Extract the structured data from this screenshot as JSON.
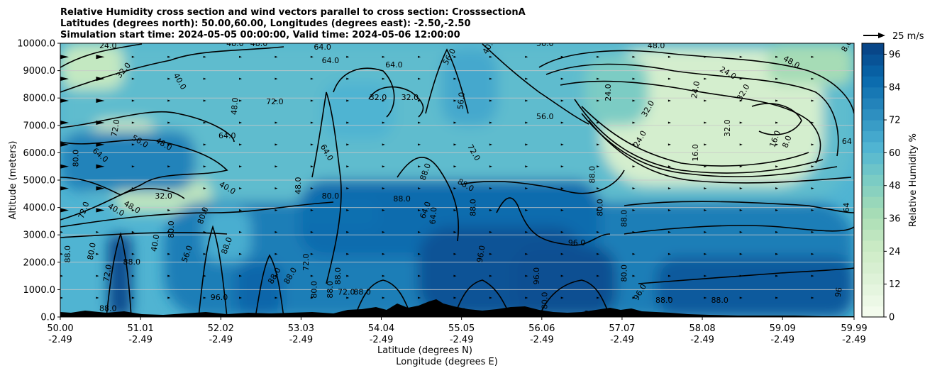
{
  "chart_data": {
    "type": "contourf",
    "title_lines": [
      "Relative Humidity cross section and wind vectors parallel to cross section: CrosssectionA",
      "Latitudes (degrees north): 50.00,60.00, Longitudes (degrees east): -2.50,-2.50",
      "Simulation start time: 2024-05-05 00:00:00, Valid time: 2024-05-06 12:00:00"
    ],
    "ylabel": "Altitude (meters)",
    "xlabel_lat": "Latitude (degrees N)",
    "xlabel_lon": "Longitude (degrees E)",
    "ylim": [
      0,
      10000
    ],
    "y_ticks": [
      0,
      1000,
      2000,
      3000,
      4000,
      5000,
      6000,
      7000,
      8000,
      9000,
      10000
    ],
    "y_tick_labels": [
      "0.0",
      "1000.0",
      "2000.0",
      "3000.0",
      "4000.0",
      "5000.0",
      "6000.0",
      "7000.0",
      "8000.0",
      "9000.0",
      "10000.0"
    ],
    "xlim": [
      50.0,
      59.99
    ],
    "x_ticks": [
      {
        "lat": 50.0,
        "lat_label": "50.00",
        "lon_label": "-2.49"
      },
      {
        "lat": 51.01,
        "lat_label": "51.01",
        "lon_label": "-2.49"
      },
      {
        "lat": 52.02,
        "lat_label": "52.02",
        "lon_label": "-2.49"
      },
      {
        "lat": 53.03,
        "lat_label": "53.03",
        "lon_label": "-2.49"
      },
      {
        "lat": 54.04,
        "lat_label": "54.04",
        "lon_label": "-2.49"
      },
      {
        "lat": 55.05,
        "lat_label": "55.05",
        "lon_label": "-2.49"
      },
      {
        "lat": 56.06,
        "lat_label": "56.06",
        "lon_label": "-2.49"
      },
      {
        "lat": 57.07,
        "lat_label": "57.07",
        "lon_label": "-2.49"
      },
      {
        "lat": 58.08,
        "lat_label": "58.08",
        "lon_label": "-2.49"
      },
      {
        "lat": 59.09,
        "lat_label": "59.09",
        "lon_label": "-2.49"
      },
      {
        "lat": 59.99,
        "lat_label": "59.99",
        "lon_label": "-2.49"
      }
    ],
    "colorbar": {
      "label": "Relative Humidity %",
      "min": 0,
      "max": 100,
      "ticks": [
        0,
        12,
        24,
        36,
        48,
        60,
        72,
        84,
        96
      ],
      "tick_labels": [
        "0",
        "12",
        "24",
        "36",
        "48",
        "60",
        "72",
        "84",
        "96"
      ],
      "levels": 25
    },
    "colormap_stops": [
      "#f7fcf0",
      "#e0f3db",
      "#ccebc5",
      "#a8ddb5",
      "#7bccc4",
      "#4eb3d3",
      "#2b8cbe",
      "#0868ac",
      "#084081"
    ],
    "wind_reference": {
      "label": "25 m/s",
      "value": 25
    },
    "rh_regions": [
      {
        "value": 58,
        "lat": [
          50.0,
          59.99
        ],
        "alt": [
          4200,
          10000
        ]
      },
      {
        "value": 28,
        "lat": [
          50.0,
          50.8
        ],
        "alt": [
          8300,
          10000
        ]
      },
      {
        "value": 26,
        "lat": [
          50.4,
          51.2
        ],
        "alt": [
          5800,
          7200
        ]
      },
      {
        "value": 30,
        "lat": [
          50.7,
          51.9
        ],
        "alt": [
          3800,
          5000
        ]
      },
      {
        "value": 20,
        "lat": [
          56.8,
          59.6
        ],
        "alt": [
          4800,
          9800
        ]
      },
      {
        "value": 38,
        "lat": [
          58.9,
          59.99
        ],
        "alt": [
          8500,
          10000
        ]
      },
      {
        "value": 50,
        "lat": [
          56.6,
          57.4
        ],
        "alt": [
          7000,
          9500
        ]
      },
      {
        "value": 78,
        "lat": [
          50.0,
          51.7
        ],
        "alt": [
          4600,
          6800
        ]
      },
      {
        "value": 80,
        "lat": [
          51.3,
          59.99
        ],
        "alt": [
          0,
          4200
        ]
      },
      {
        "value": 86,
        "lat": [
          53.0,
          56.8
        ],
        "alt": [
          2200,
          5000
        ]
      },
      {
        "value": 94,
        "lat": [
          54.5,
          56.6
        ],
        "alt": [
          0,
          3300
        ]
      },
      {
        "value": 95,
        "lat": [
          55.7,
          57.0
        ],
        "alt": [
          0,
          2600
        ]
      },
      {
        "value": 92,
        "lat": [
          57.5,
          59.99
        ],
        "alt": [
          0,
          2200
        ]
      },
      {
        "value": 96,
        "lat": [
          50.6,
          50.9
        ],
        "alt": [
          0,
          3000
        ]
      },
      {
        "value": 88,
        "lat": [
          52.2,
          52.8
        ],
        "alt": [
          0,
          2000
        ]
      },
      {
        "value": 64,
        "lat": [
          51.8,
          52.4
        ],
        "alt": [
          2000,
          4000
        ]
      },
      {
        "value": 62,
        "lat": [
          53.3,
          54.2
        ],
        "alt": [
          6500,
          8600
        ]
      },
      {
        "value": 66,
        "lat": [
          54.8,
          55.5
        ],
        "alt": [
          7000,
          9800
        ]
      },
      {
        "value": 85,
        "lat": [
          53.0,
          54.0
        ],
        "alt": [
          3200,
          4300
        ]
      }
    ],
    "contour_labels": [
      {
        "text": "24.0",
        "lat": 50.6,
        "alt": 9900,
        "angle": 0
      },
      {
        "text": "32.0",
        "lat": 50.8,
        "alt": 9000,
        "angle": -50
      },
      {
        "text": "40.0",
        "lat": 51.5,
        "alt": 8600,
        "angle": 60
      },
      {
        "text": "48.0",
        "lat": 52.2,
        "alt": 9980,
        "angle": 0
      },
      {
        "text": "48.0",
        "lat": 52.5,
        "alt": 9980,
        "angle": 0
      },
      {
        "text": "64.0",
        "lat": 53.3,
        "alt": 9850,
        "angle": 0
      },
      {
        "text": "64.0",
        "lat": 53.4,
        "alt": 9350,
        "angle": 0
      },
      {
        "text": "64.0",
        "lat": 54.2,
        "alt": 9200,
        "angle": 0
      },
      {
        "text": "56.0",
        "lat": 54.9,
        "alt": 9500,
        "angle": -60
      },
      {
        "text": "40.0",
        "lat": 55.4,
        "alt": 9900,
        "angle": -60
      },
      {
        "text": "56.0",
        "lat": 56.1,
        "alt": 9980,
        "angle": 0
      },
      {
        "text": "72.0",
        "lat": 52.7,
        "alt": 7850,
        "angle": 0
      },
      {
        "text": "48.0",
        "lat": 52.2,
        "alt": 7700,
        "angle": -85
      },
      {
        "text": "32.0",
        "lat": 54.0,
        "alt": 8000,
        "angle": 0
      },
      {
        "text": "32.0",
        "lat": 54.4,
        "alt": 8000,
        "angle": 0
      },
      {
        "text": "56.0",
        "lat": 55.05,
        "alt": 7900,
        "angle": -85
      },
      {
        "text": "56.0",
        "lat": 56.1,
        "alt": 7300,
        "angle": 0
      },
      {
        "text": "64.0",
        "lat": 52.1,
        "alt": 6600,
        "angle": 0
      },
      {
        "text": "56.0",
        "lat": 51.0,
        "alt": 6400,
        "angle": 30
      },
      {
        "text": "48.0",
        "lat": 51.3,
        "alt": 6300,
        "angle": 30
      },
      {
        "text": "64.0",
        "lat": 50.5,
        "alt": 5900,
        "angle": 40
      },
      {
        "text": "72.0",
        "lat": 50.7,
        "alt": 6900,
        "angle": -80
      },
      {
        "text": "80.0",
        "lat": 50.2,
        "alt": 5800,
        "angle": -90
      },
      {
        "text": "32.0",
        "lat": 51.3,
        "alt": 4400,
        "angle": 0
      },
      {
        "text": "40.0",
        "lat": 52.1,
        "alt": 4700,
        "angle": 30
      },
      {
        "text": "48.0",
        "lat": 53.0,
        "alt": 4800,
        "angle": -90
      },
      {
        "text": "64.0",
        "lat": 53.35,
        "alt": 6000,
        "angle": 60
      },
      {
        "text": "72.0",
        "lat": 55.2,
        "alt": 6000,
        "angle": 60
      },
      {
        "text": "80.0",
        "lat": 53.4,
        "alt": 4400,
        "angle": 0
      },
      {
        "text": "88.0",
        "lat": 54.6,
        "alt": 5300,
        "angle": -70
      },
      {
        "text": "88.0",
        "lat": 55.1,
        "alt": 4800,
        "angle": 30
      },
      {
        "text": "64.0",
        "lat": 54.6,
        "alt": 3900,
        "angle": -70
      },
      {
        "text": "64.0",
        "lat": 54.7,
        "alt": 3700,
        "angle": -85
      },
      {
        "text": "88.0",
        "lat": 55.2,
        "alt": 4000,
        "angle": -90
      },
      {
        "text": "88.0",
        "lat": 56.7,
        "alt": 5200,
        "angle": -90
      },
      {
        "text": "80.0",
        "lat": 56.8,
        "alt": 4000,
        "angle": -90
      },
      {
        "text": "96.0",
        "lat": 56.5,
        "alt": 2700,
        "angle": 0
      },
      {
        "text": "24.0",
        "lat": 56.9,
        "alt": 8200,
        "angle": -90
      },
      {
        "text": "32.0",
        "lat": 57.4,
        "alt": 7600,
        "angle": -60
      },
      {
        "text": "24.0",
        "lat": 57.3,
        "alt": 6500,
        "angle": -60
      },
      {
        "text": "24.0",
        "lat": 58.0,
        "alt": 8300,
        "angle": -80
      },
      {
        "text": "32.0",
        "lat": 58.4,
        "alt": 6900,
        "angle": -90
      },
      {
        "text": "16.0",
        "lat": 58.0,
        "alt": 6000,
        "angle": -90
      },
      {
        "text": "32.0",
        "lat": 58.6,
        "alt": 8200,
        "angle": -60
      },
      {
        "text": "24.0",
        "lat": 58.4,
        "alt": 8900,
        "angle": 30
      },
      {
        "text": "48.0",
        "lat": 59.2,
        "alt": 9300,
        "angle": 30
      },
      {
        "text": "48.0",
        "lat": 57.5,
        "alt": 9900,
        "angle": 0
      },
      {
        "text": "16.0",
        "lat": 59.0,
        "alt": 6500,
        "angle": -70
      },
      {
        "text": "8.0",
        "lat": 59.15,
        "alt": 6400,
        "angle": -70
      },
      {
        "text": "64",
        "lat": 59.9,
        "alt": 6400,
        "angle": 0
      },
      {
        "text": "64",
        "lat": 59.9,
        "alt": 4000,
        "angle": -90
      },
      {
        "text": "8.0",
        "lat": 59.9,
        "alt": 9900,
        "angle": -60
      },
      {
        "text": "72.0",
        "lat": 50.3,
        "alt": 3900,
        "angle": -70
      },
      {
        "text": "40.0",
        "lat": 50.7,
        "alt": 3900,
        "angle": 30
      },
      {
        "text": "48.0",
        "lat": 50.9,
        "alt": 4000,
        "angle": 30
      },
      {
        "text": "80.0",
        "lat": 51.4,
        "alt": 3200,
        "angle": -90
      },
      {
        "text": "80.0",
        "lat": 51.8,
        "alt": 3700,
        "angle": -70
      },
      {
        "text": "40.0",
        "lat": 51.2,
        "alt": 2700,
        "angle": -80
      },
      {
        "text": "56.0",
        "lat": 51.6,
        "alt": 2300,
        "angle": -70
      },
      {
        "text": "88.0",
        "lat": 52.1,
        "alt": 2600,
        "angle": -70
      },
      {
        "text": "80.0",
        "lat": 50.4,
        "alt": 2400,
        "angle": -80
      },
      {
        "text": "72.0",
        "lat": 50.6,
        "alt": 1600,
        "angle": -80
      },
      {
        "text": "88.0",
        "lat": 50.1,
        "alt": 2300,
        "angle": -90
      },
      {
        "text": "88.0",
        "lat": 50.9,
        "alt": 2000,
        "angle": 0
      },
      {
        "text": "88.0",
        "lat": 50.6,
        "alt": 300,
        "angle": 0
      },
      {
        "text": "96.0",
        "lat": 52.0,
        "alt": 700,
        "angle": 0
      },
      {
        "text": "88.0",
        "lat": 52.7,
        "alt": 1500,
        "angle": -60
      },
      {
        "text": "88.0",
        "lat": 52.9,
        "alt": 1500,
        "angle": -60
      },
      {
        "text": "72.0",
        "lat": 53.1,
        "alt": 2000,
        "angle": -90
      },
      {
        "text": "80.0",
        "lat": 53.2,
        "alt": 1000,
        "angle": -90
      },
      {
        "text": "88.0",
        "lat": 53.4,
        "alt": 1000,
        "angle": -90
      },
      {
        "text": "72.0",
        "lat": 53.6,
        "alt": 900,
        "angle": 0
      },
      {
        "text": "88.0",
        "lat": 53.8,
        "alt": 900,
        "angle": 0
      },
      {
        "text": "88.0",
        "lat": 54.3,
        "alt": 4300,
        "angle": 0
      },
      {
        "text": "88.0",
        "lat": 53.5,
        "alt": 1500,
        "angle": -90
      },
      {
        "text": "96.0",
        "lat": 55.3,
        "alt": 2300,
        "angle": -80
      },
      {
        "text": "96.0",
        "lat": 56.0,
        "alt": 1500,
        "angle": -90
      },
      {
        "text": "96.0",
        "lat": 55.0,
        "alt": 200,
        "angle": 0
      },
      {
        "text": "80.0",
        "lat": 56.1,
        "alt": 600,
        "angle": -90
      },
      {
        "text": "80.0",
        "lat": 57.1,
        "alt": 1600,
        "angle": -90
      },
      {
        "text": "88.0",
        "lat": 57.6,
        "alt": 600,
        "angle": 0
      },
      {
        "text": "88.0",
        "lat": 58.3,
        "alt": 600,
        "angle": 0
      },
      {
        "text": "96.0",
        "lat": 57.3,
        "alt": 900,
        "angle": -60
      },
      {
        "text": "88.0",
        "lat": 56.7,
        "alt": 100,
        "angle": 0
      },
      {
        "text": "96",
        "lat": 59.8,
        "alt": 900,
        "angle": -80
      },
      {
        "text": "88.0",
        "lat": 57.1,
        "alt": 3600,
        "angle": -90
      }
    ]
  }
}
